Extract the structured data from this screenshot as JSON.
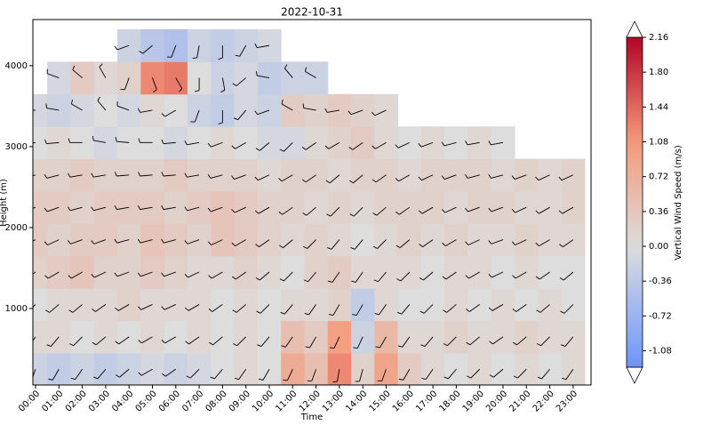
{
  "chart_data": {
    "type": "heatmap",
    "title": "2022-10-31",
    "xlabel": "Time",
    "ylabel": "Height (m)",
    "colorbar_label": "Vertical Wind Speed (m/s)",
    "colormap": "coolwarm",
    "x": [
      "00:00",
      "01:00",
      "02:00",
      "03:00",
      "04:00",
      "05:00",
      "06:00",
      "07:00",
      "08:00",
      "09:00",
      "10:00",
      "11:00",
      "12:00",
      "13:00",
      "14:00",
      "15:00",
      "16:00",
      "17:00",
      "18:00",
      "19:00",
      "20:00",
      "21:00",
      "22:00",
      "23:00"
    ],
    "heights": [
      250,
      650,
      1050,
      1450,
      1850,
      2250,
      2650,
      3050,
      3450,
      3850,
      4250
    ],
    "ylim": [
      55,
      4570
    ],
    "yticks": [
      1000,
      2000,
      3000,
      4000
    ],
    "clim": [
      -1.25,
      2.16
    ],
    "cticks": [
      {
        "value": -1.08,
        "label": "-1.08"
      },
      {
        "value": -0.72,
        "label": "-0.72"
      },
      {
        "value": -0.36,
        "label": "-0.36"
      },
      {
        "value": 0,
        "label": "0.00"
      },
      {
        "value": 0.36,
        "label": "0.36"
      },
      {
        "value": 0.72,
        "label": "0.72"
      },
      {
        "value": 1.08,
        "label": "1.08"
      },
      {
        "value": 1.44,
        "label": "1.44"
      },
      {
        "value": 1.8,
        "label": "1.80"
      },
      {
        "value": 2.16,
        "label": "2.16"
      }
    ],
    "z": [
      [
        -0.2,
        -0.3,
        -0.2,
        -0.3,
        -0.2,
        -0.1,
        -0.2,
        -0.1,
        0.0,
        0.1,
        0.0,
        0.8,
        0.5,
        1.2,
        0.2,
        0.9,
        0.3,
        0.1,
        0.0,
        0.1,
        0.0,
        0.1,
        0.0,
        0.1
      ],
      [
        0.1,
        0.1,
        0.0,
        0.1,
        0.0,
        0.1,
        0.0,
        0.1,
        0.0,
        0.1,
        0.0,
        0.5,
        0.3,
        1.0,
        -0.2,
        0.6,
        0.1,
        0.1,
        0.2,
        0.1,
        0.1,
        0.2,
        0.1,
        0.1
      ],
      [
        0.0,
        0.1,
        0.1,
        0.1,
        0.2,
        0.1,
        0.1,
        0.1,
        0.0,
        0.1,
        0.0,
        0.1,
        0.1,
        0.2,
        -0.3,
        0.1,
        0.0,
        0.0,
        0.1,
        0.0,
        0.1,
        0.0,
        0.1,
        0.0
      ],
      [
        0.2,
        0.3,
        0.4,
        0.2,
        0.2,
        0.3,
        0.2,
        0.1,
        0.1,
        0.2,
        0.1,
        0.0,
        0.2,
        0.3,
        0.1,
        0.1,
        0.1,
        0.0,
        0.1,
        0.1,
        0.0,
        0.1,
        0.0,
        0.0
      ],
      [
        0.3,
        0.2,
        0.3,
        0.3,
        0.2,
        0.4,
        0.3,
        0.2,
        0.4,
        0.3,
        0.2,
        0.1,
        0.2,
        0.1,
        0.0,
        0.1,
        0.2,
        0.1,
        0.2,
        0.1,
        0.1,
        0.2,
        0.1,
        0.1
      ],
      [
        0.3,
        0.3,
        0.2,
        0.3,
        0.3,
        0.3,
        0.2,
        0.3,
        0.4,
        0.3,
        0.2,
        0.2,
        0.1,
        0.2,
        0.1,
        0.2,
        0.2,
        0.2,
        0.1,
        0.2,
        0.2,
        0.1,
        0.1,
        0.2
      ],
      [
        0.2,
        0.2,
        0.3,
        0.2,
        0.2,
        0.2,
        0.3,
        0.2,
        0.2,
        0.2,
        0.1,
        0.2,
        0.2,
        0.1,
        0.2,
        0.2,
        0.1,
        0.2,
        0.2,
        0.2,
        0.1,
        0.2,
        0.1,
        0.2
      ],
      [
        0.0,
        0.1,
        0.0,
        -0.1,
        0.0,
        0.0,
        -0.1,
        0.0,
        0.1,
        0.0,
        -0.1,
        -0.1,
        0.1,
        0.2,
        0.3,
        0.1,
        0.0,
        0.1,
        0.0,
        0.1,
        0.0,
        null,
        null,
        null
      ],
      [
        -0.1,
        -0.2,
        -0.1,
        0.0,
        -0.1,
        0.1,
        0.0,
        -0.2,
        -0.3,
        -0.1,
        -0.2,
        0.3,
        0.2,
        0.3,
        0.2,
        0.1,
        null,
        null,
        null,
        null,
        null,
        null,
        null,
        null
      ],
      [
        null,
        -0.1,
        0.3,
        0.1,
        0.2,
        1.2,
        1.3,
        0.0,
        -0.2,
        -0.1,
        -0.3,
        -0.2,
        -0.2,
        null,
        null,
        null,
        null,
        null,
        null,
        null,
        null,
        null,
        null,
        null
      ],
      [
        null,
        null,
        null,
        null,
        -0.2,
        -0.4,
        -0.5,
        -0.2,
        -0.3,
        -0.2,
        -0.1,
        null,
        null,
        null,
        null,
        null,
        null,
        null,
        null,
        null,
        null,
        null,
        null,
        null
      ]
    ],
    "wind_direction": [
      [
        200,
        210,
        215,
        220,
        230,
        240,
        235,
        225,
        220,
        215,
        210,
        205,
        200,
        190,
        195,
        200,
        210,
        215,
        220,
        225,
        230,
        225,
        220,
        215
      ],
      [
        215,
        220,
        225,
        230,
        235,
        240,
        240,
        235,
        230,
        225,
        220,
        215,
        210,
        205,
        205,
        210,
        215,
        220,
        225,
        230,
        235,
        230,
        225,
        220
      ],
      [
        225,
        230,
        230,
        235,
        240,
        245,
        245,
        240,
        235,
        230,
        225,
        220,
        215,
        210,
        210,
        215,
        220,
        225,
        230,
        235,
        240,
        235,
        230,
        225
      ],
      [
        235,
        240,
        240,
        245,
        250,
        250,
        250,
        245,
        240,
        235,
        230,
        225,
        220,
        215,
        215,
        220,
        225,
        230,
        235,
        240,
        245,
        240,
        235,
        230
      ],
      [
        245,
        245,
        250,
        250,
        255,
        255,
        255,
        250,
        245,
        240,
        235,
        230,
        225,
        220,
        220,
        225,
        230,
        235,
        240,
        245,
        250,
        245,
        240,
        235
      ],
      [
        250,
        250,
        255,
        255,
        260,
        260,
        260,
        255,
        250,
        245,
        240,
        235,
        230,
        225,
        225,
        230,
        235,
        240,
        245,
        250,
        250,
        245,
        240,
        240
      ],
      [
        255,
        255,
        260,
        260,
        265,
        265,
        265,
        260,
        255,
        250,
        245,
        240,
        235,
        230,
        230,
        235,
        240,
        245,
        250,
        255,
        255,
        250,
        245,
        245
      ],
      [
        260,
        265,
        270,
        280,
        275,
        270,
        265,
        260,
        250,
        240,
        230,
        225,
        235,
        240,
        235,
        240,
        245,
        250,
        255,
        260,
        260,
        null,
        null,
        null
      ],
      [
        270,
        280,
        300,
        320,
        290,
        260,
        240,
        200,
        180,
        220,
        250,
        300,
        280,
        260,
        250,
        245,
        null,
        null,
        null,
        null,
        null,
        null,
        null,
        null
      ],
      [
        null,
        290,
        310,
        330,
        200,
        160,
        150,
        180,
        170,
        230,
        280,
        320,
        300,
        null,
        null,
        null,
        null,
        null,
        null,
        null,
        null,
        null,
        null,
        null
      ],
      [
        null,
        null,
        null,
        null,
        250,
        230,
        200,
        190,
        180,
        210,
        260,
        null,
        null,
        null,
        null,
        null,
        null,
        null,
        null,
        null,
        null,
        null,
        null,
        null
      ]
    ]
  }
}
